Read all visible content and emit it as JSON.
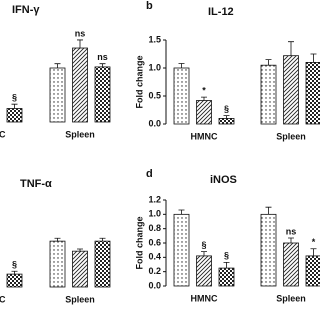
{
  "chart_data": [
    {
      "type": "bar",
      "title": "IFN-γ",
      "categories": [
        "HMNC",
        "Spleen"
      ],
      "ylim": [
        0,
        1.5
      ],
      "series": [
        {
          "pattern": "dots",
          "values": [
            null,
            1.0
          ],
          "errors": [
            null,
            0.08
          ],
          "annotations": [
            null,
            null
          ]
        },
        {
          "pattern": "hatch",
          "values": [
            null,
            1.37
          ],
          "errors": [
            null,
            0.15
          ],
          "annotations": [
            null,
            "ns"
          ]
        },
        {
          "pattern": "checker",
          "values": [
            0.25,
            1.02
          ],
          "errors": [
            0.08,
            0.06
          ],
          "annotations": [
            "§",
            "ns"
          ]
        }
      ]
    },
    {
      "type": "bar",
      "panel_label": "b",
      "title": "IL-12",
      "y_label": "Fold change",
      "categories": [
        "HMNC",
        "Spleen"
      ],
      "ylim": [
        0,
        1.5
      ],
      "yticks": [
        {
          "value": 0,
          "label": "0.0"
        },
        {
          "value": 0.5,
          "label": "0.5"
        },
        {
          "value": 1,
          "label": "1.0"
        },
        {
          "value": 1.5,
          "label": "1.5"
        }
      ],
      "series": [
        {
          "pattern": "dots",
          "values": [
            1.0,
            1.05
          ],
          "errors": [
            0.08,
            0.1
          ],
          "annotations": [
            null,
            null
          ]
        },
        {
          "pattern": "hatch",
          "values": [
            0.42,
            1.22
          ],
          "errors": [
            0.06,
            0.25
          ],
          "annotations": [
            "*",
            null
          ]
        },
        {
          "pattern": "checker",
          "values": [
            0.1,
            1.1
          ],
          "errors": [
            0.05,
            0.15
          ],
          "annotations": [
            "§",
            null
          ]
        }
      ]
    },
    {
      "type": "bar",
      "title": "TNF-α",
      "categories": [
        "HMNC",
        "Spleen"
      ],
      "ylim": [
        0,
        1.2
      ],
      "series": [
        {
          "pattern": "dots",
          "values": [
            null,
            0.64
          ],
          "errors": [
            null,
            0.04
          ],
          "annotations": [
            null,
            null
          ]
        },
        {
          "pattern": "hatch",
          "values": [
            null,
            0.5
          ],
          "errors": [
            null,
            0.03
          ],
          "annotations": [
            null,
            null
          ]
        },
        {
          "pattern": "checker",
          "values": [
            0.18,
            0.64
          ],
          "errors": [
            0.04,
            0.04
          ],
          "annotations": [
            "§",
            null
          ]
        }
      ]
    },
    {
      "type": "bar",
      "panel_label": "d",
      "title": "iNOS",
      "y_label": "Fold change",
      "categories": [
        "HMNC",
        "Spleen"
      ],
      "ylim": [
        0,
        1.2
      ],
      "yticks": [
        {
          "value": 0,
          "label": "0.0"
        },
        {
          "value": 0.2,
          "label": "0.2"
        },
        {
          "value": 0.4,
          "label": "0.4"
        },
        {
          "value": 0.6,
          "label": "0.6"
        },
        {
          "value": 0.8,
          "label": "0.8"
        },
        {
          "value": 1,
          "label": "1.0"
        },
        {
          "value": 1.2,
          "label": "1.2"
        }
      ],
      "series": [
        {
          "pattern": "dots",
          "values": [
            1.0,
            1.0
          ],
          "errors": [
            0.06,
            0.1
          ],
          "annotations": [
            null,
            null
          ]
        },
        {
          "pattern": "hatch",
          "values": [
            0.42,
            0.6
          ],
          "errors": [
            0.06,
            0.07
          ],
          "annotations": [
            "§",
            "ns"
          ]
        },
        {
          "pattern": "checker",
          "values": [
            0.25,
            0.42
          ],
          "errors": [
            0.08,
            0.1
          ],
          "annotations": [
            "§",
            "*"
          ]
        }
      ]
    }
  ]
}
